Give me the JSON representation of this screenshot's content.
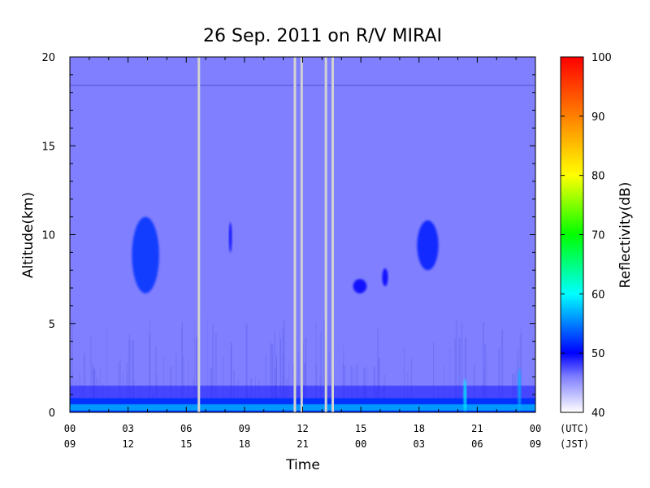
{
  "chart_data": {
    "type": "heatmap",
    "title": "26 Sep. 2011  on R/V MIRAI",
    "xlabel": "Time",
    "ylabel": "Altitude(km)",
    "xlim": [
      0,
      24
    ],
    "ylim": [
      0,
      20
    ],
    "x_ticks_utc": [
      "00",
      "03",
      "06",
      "09",
      "12",
      "15",
      "18",
      "21",
      "00"
    ],
    "x_ticks_jst": [
      "09",
      "12",
      "15",
      "18",
      "21",
      "00",
      "03",
      "06",
      "09"
    ],
    "x_tick_hours": [
      0,
      3,
      6,
      9,
      12,
      15,
      18,
      21,
      24
    ],
    "x_unit_utc": "(UTC)",
    "x_unit_jst": "(JST)",
    "y_ticks": [
      0,
      5,
      10,
      15,
      20
    ],
    "colorbar": {
      "label": "Reflectivity(dB)",
      "min": 40,
      "max": 100,
      "ticks": [
        40,
        50,
        60,
        70,
        80,
        90,
        100
      ]
    },
    "background_reflectivity": 46,
    "data_gaps_hours": [
      6.65,
      11.6,
      11.95,
      13.2,
      13.55
    ],
    "echo_features": [
      {
        "start_hour": 3.2,
        "end_hour": 4.6,
        "bottom_km": 6.7,
        "top_km": 11.0,
        "reflectivity": 52
      },
      {
        "start_hour": 8.2,
        "end_hour": 8.35,
        "bottom_km": 9.0,
        "top_km": 10.7,
        "reflectivity": 50
      },
      {
        "start_hour": 14.6,
        "end_hour": 15.3,
        "bottom_km": 6.7,
        "top_km": 7.5,
        "reflectivity": 50
      },
      {
        "start_hour": 16.1,
        "end_hour": 16.4,
        "bottom_km": 7.1,
        "top_km": 8.1,
        "reflectivity": 50
      },
      {
        "start_hour": 17.9,
        "end_hour": 19.0,
        "bottom_km": 8.0,
        "top_km": 10.8,
        "reflectivity": 51
      },
      {
        "start_hour": 0.0,
        "end_hour": 24.0,
        "bottom_km": 0.0,
        "top_km": 0.8,
        "reflectivity": 56
      },
      {
        "start_hour": 20.3,
        "end_hour": 20.45,
        "bottom_km": 0.0,
        "top_km": 1.9,
        "reflectivity": 60
      },
      {
        "start_hour": 23.1,
        "end_hour": 23.25,
        "bottom_km": 0.0,
        "top_km": 2.5,
        "reflectivity": 57
      }
    ],
    "grid": false
  }
}
